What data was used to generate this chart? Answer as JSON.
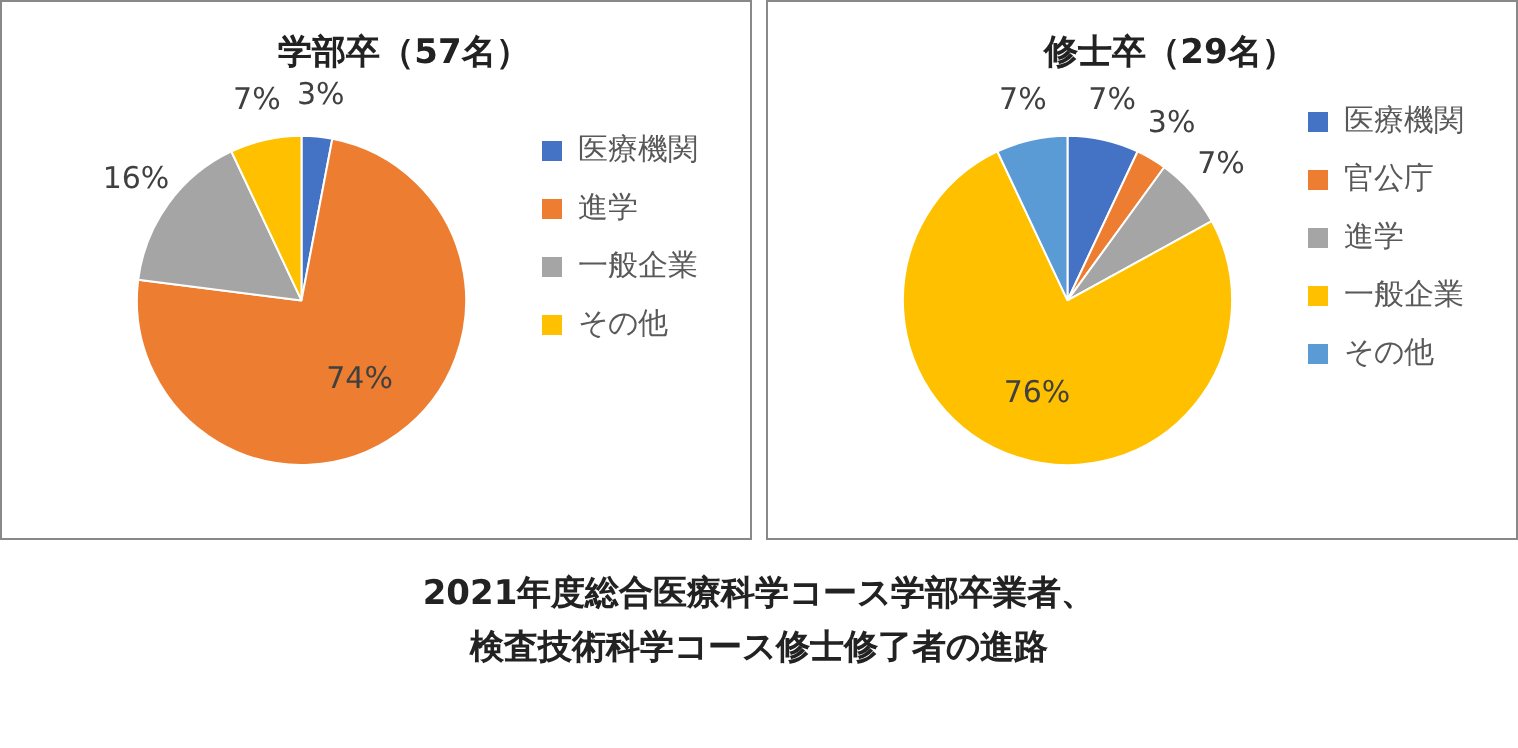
{
  "chart_data": [
    {
      "type": "pie",
      "title": "学部卒（57名）",
      "categories": [
        "医療機関",
        "進学",
        "一般企業",
        "その他"
      ],
      "values": [
        3,
        74,
        16,
        7
      ],
      "value_labels": [
        "3%",
        "74%",
        "16%",
        "7%"
      ],
      "colors": [
        "#4472c4",
        "#ed7d31",
        "#a5a5a5",
        "#ffc000"
      ],
      "legend": "right"
    },
    {
      "type": "pie",
      "title": "修士卒（29名）",
      "categories": [
        "医療機関",
        "官公庁",
        "進学",
        "一般企業",
        "その他"
      ],
      "values": [
        7,
        3,
        7,
        76,
        7
      ],
      "value_labels": [
        "7%",
        "3%",
        "7%",
        "76%",
        "7%"
      ],
      "colors": [
        "#4472c4",
        "#ed7d31",
        "#a5a5a5",
        "#ffc000",
        "#5b9bd5"
      ],
      "legend": "right"
    },
    {
      "type": "other",
      "annotations": [
        "2021年度総合医療科学コース学部卒業者、",
        "検査技術科学コース修士修了者の進路"
      ]
    }
  ]
}
